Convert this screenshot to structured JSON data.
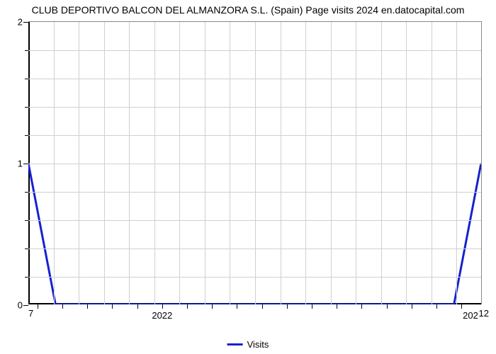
{
  "chart": {
    "type": "line",
    "title": "CLUB DEPORTIVO BALCON DEL ALMANZORA S.L. (Spain) Page visits 2024 en.datocapital.com",
    "title_fontsize": 14,
    "title_color": "#000000",
    "background_color": "#ffffff",
    "grid_color": "#d0d0d0",
    "axis_color": "#000000",
    "y": {
      "min": 0,
      "max": 2,
      "major_ticks": [
        0,
        1,
        2
      ],
      "minor_ticks_per_major": 5
    },
    "x": {
      "tick_positions": [
        0.02,
        0.075,
        0.13,
        0.185,
        0.24,
        0.295,
        0.35,
        0.405,
        0.46,
        0.515,
        0.57,
        0.625,
        0.68,
        0.735,
        0.79,
        0.845,
        0.9,
        0.955
      ],
      "label_2022": "2022",
      "label_2022_pos": 0.295,
      "label_202": "202",
      "label_202_pos": 0.975,
      "corner_tl": "7",
      "corner_tr": "12"
    },
    "grid_v_positions": [
      0.0556,
      0.1111,
      0.1667,
      0.2222,
      0.2778,
      0.3333,
      0.3889,
      0.4444,
      0.5,
      0.5556,
      0.6111,
      0.6667,
      0.7222,
      0.7778,
      0.8333,
      0.8889,
      0.9444
    ],
    "grid_h_positions": [
      0.1,
      0.2,
      0.3,
      0.4,
      0.5,
      0.6,
      0.7,
      0.8,
      0.9
    ],
    "series": {
      "label": "Visits",
      "color": "#1620d2",
      "line_width": 3,
      "points": [
        {
          "x": 0.0,
          "y": 1.0
        },
        {
          "x": 0.06,
          "y": 0.0
        },
        {
          "x": 0.94,
          "y": 0.0
        },
        {
          "x": 1.0,
          "y": 1.0
        }
      ]
    }
  }
}
